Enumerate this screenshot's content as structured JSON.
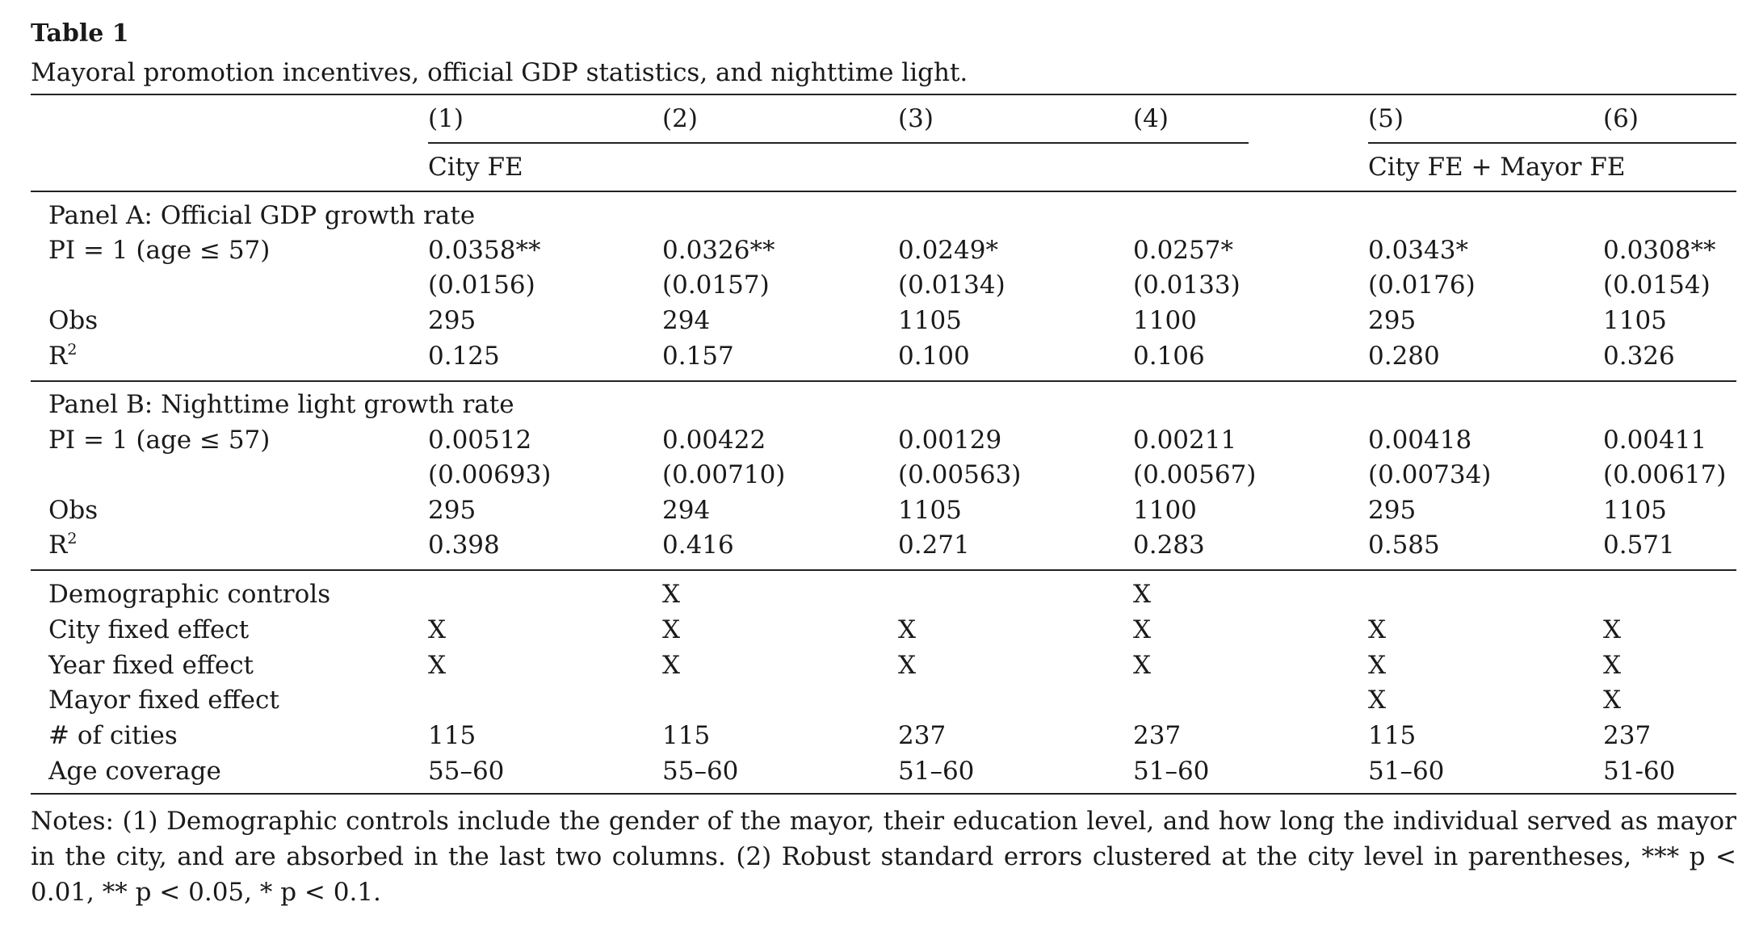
{
  "caption": {
    "title": "Table 1",
    "text": "Mayoral promotion incentives, official GDP statistics, and nighttime light."
  },
  "columns": [
    "(1)",
    "(2)",
    "(3)",
    "(4)",
    "(5)",
    "(6)"
  ],
  "groups": {
    "left": "City FE",
    "right": "City FE + Mayor FE"
  },
  "panel_a": {
    "title": "Panel A: Official GDP growth rate",
    "rows": [
      {
        "label": "PI = 1 (age ≤ 57)",
        "values": [
          "0.0358**",
          "0.0326**",
          "0.0249*",
          "0.0257*",
          "0.0343*",
          "0.0308**"
        ]
      },
      {
        "label": "",
        "values": [
          "(0.0156)",
          "(0.0157)",
          "(0.0134)",
          "(0.0133)",
          "(0.0176)",
          "(0.0154)"
        ]
      },
      {
        "label": "Obs",
        "values": [
          "295",
          "294",
          "1105",
          "1100",
          "295",
          "1105"
        ]
      },
      {
        "label": "R",
        "sup": "2",
        "values": [
          "0.125",
          "0.157",
          "0.100",
          "0.106",
          "0.280",
          "0.326"
        ]
      }
    ]
  },
  "panel_b": {
    "title": "Panel B: Nighttime light growth rate",
    "rows": [
      {
        "label": "PI = 1 (age ≤ 57)",
        "values": [
          "0.00512",
          "0.00422",
          "0.00129",
          "0.00211",
          "0.00418",
          "0.00411"
        ]
      },
      {
        "label": "",
        "values": [
          "(0.00693)",
          "(0.00710)",
          "(0.00563)",
          "(0.00567)",
          "(0.00734)",
          "(0.00617)"
        ]
      },
      {
        "label": "Obs",
        "values": [
          "295",
          "294",
          "1105",
          "1100",
          "295",
          "1105"
        ]
      },
      {
        "label": "R",
        "sup": "2",
        "values": [
          "0.398",
          "0.416",
          "0.271",
          "0.283",
          "0.585",
          "0.571"
        ]
      }
    ]
  },
  "controls": [
    {
      "label": "Demographic controls",
      "values": [
        "",
        "X",
        "",
        "X",
        "",
        ""
      ]
    },
    {
      "label": "City fixed effect",
      "values": [
        "X",
        "X",
        "X",
        "X",
        "X",
        "X"
      ]
    },
    {
      "label": "Year fixed effect",
      "values": [
        "X",
        "X",
        "X",
        "X",
        "X",
        "X"
      ]
    },
    {
      "label": "Mayor fixed effect",
      "values": [
        "",
        "",
        "",
        "",
        "X",
        "X"
      ]
    },
    {
      "label": "# of cities",
      "values": [
        "115",
        "115",
        "237",
        "237",
        "115",
        "237"
      ]
    },
    {
      "label": "Age coverage",
      "values": [
        "55–60",
        "55–60",
        "51–60",
        "51–60",
        "51–60",
        "51-60"
      ]
    }
  ],
  "notes": "Notes: (1) Demographic controls include the gender of the mayor, their education level, and how long the individual served as mayor in the city, and are absorbed in the last two columns. (2) Robust standard errors clustered at the city level in parentheses, *** p < 0.01, ** p < 0.05, * p < 0.1."
}
